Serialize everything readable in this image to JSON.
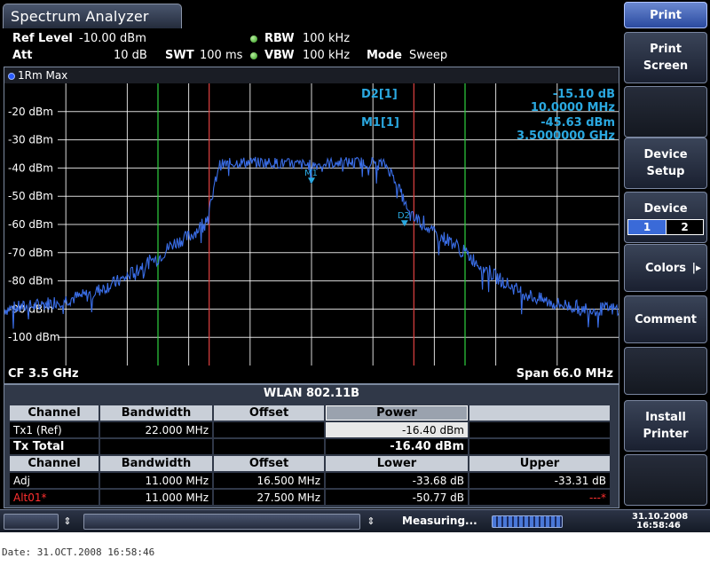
{
  "window": {
    "title": "Spectrum Analyzer"
  },
  "settings": {
    "ref_level_label": "Ref Level",
    "ref_level_value": "-10.00 dBm",
    "att_label": "Att",
    "att_value": "10 dB",
    "swt_label": "SWT",
    "swt_value": "100 ms",
    "rbw_label": "RBW",
    "rbw_value": "100 kHz",
    "vbw_label": "VBW",
    "vbw_value": "100 kHz",
    "mode_label": "Mode",
    "mode_value": "Sweep"
  },
  "trace": {
    "label": "1Rm Max"
  },
  "markers": {
    "d2_label": "D2[1]",
    "d2_level": "-15.10 dB",
    "d2_freq": "10.0000 MHz",
    "m1_label": "M1[1]",
    "m1_level": "-45.63 dBm",
    "m1_freq": "3.5000000 GHz",
    "m1_tag": "M1",
    "d2_tag": "D2"
  },
  "chart_data": {
    "type": "line",
    "ylabel_ticks": [
      "-20 dBm",
      "-30 dBm",
      "-40 dBm",
      "-50 dBm",
      "-60 dBm",
      "-70 dBm",
      "-80 dBm",
      "-90 dBm",
      "-100 dBm"
    ],
    "y_tick_values": [
      -20,
      -30,
      -40,
      -50,
      -60,
      -70,
      -80,
      -90,
      -100
    ],
    "ylim": [
      -110,
      -10
    ],
    "xlim_mhz": [
      -33,
      33
    ],
    "series": [
      {
        "x": [
          -33,
          -30,
          -27,
          -24,
          -22,
          -20,
          -18,
          -16.5,
          -15,
          -13,
          -12,
          -11,
          -10.5,
          -10,
          -8,
          -5,
          0,
          3,
          5,
          7,
          8,
          9,
          10,
          10.3,
          11,
          12,
          13,
          15,
          16.5,
          18,
          20,
          22,
          24,
          26,
          28,
          30,
          33
        ],
        "y": [
          -90,
          -89,
          -87,
          -85,
          -82,
          -79,
          -74,
          -72,
          -67,
          -64,
          -61,
          -56,
          -48,
          -39,
          -38,
          -38,
          -39,
          -38,
          -38,
          -38,
          -39,
          -44,
          -52,
          -56,
          -58,
          -59,
          -63,
          -66,
          -70,
          -74,
          -79,
          -83,
          -86,
          -88,
          -89,
          -90,
          -90
        ]
      }
    ],
    "channel_lines_mhz": {
      "green": [
        -16.5,
        16.5
      ],
      "red": [
        -11,
        11
      ]
    }
  },
  "footer": {
    "cf": "CF 3.5 GHz",
    "span": "Span 66.0 MHz"
  },
  "table": {
    "title": "WLAN 802.11B",
    "headers1": [
      "Channel",
      "Bandwidth",
      "Offset",
      "Power"
    ],
    "row_tx1": {
      "channel": "Tx1 (Ref)",
      "bandwidth": "22.000 MHz",
      "offset": "",
      "power": "-16.40 dBm"
    },
    "row_total": {
      "channel": "Tx Total",
      "power": "-16.40 dBm"
    },
    "headers2": [
      "Channel",
      "Bandwidth",
      "Offset",
      "Lower",
      "Upper"
    ],
    "row_adj": {
      "channel": "Adj",
      "bandwidth": "11.000 MHz",
      "offset": "16.500 MHz",
      "lower": "-33.68 dB",
      "upper": "-33.31 dB"
    },
    "row_alt": {
      "channel": "Alt01*",
      "bandwidth": "11.000 MHz",
      "offset": "27.500 MHz",
      "lower": "-50.77 dB",
      "upper": "---*"
    }
  },
  "status": {
    "measuring": "Measuring...",
    "date": "31.10.2008",
    "time": "16:58:46"
  },
  "softkeys": {
    "print": "Print",
    "print_screen_1": "Print",
    "print_screen_2": "Screen",
    "device_setup_1": "Device",
    "device_setup_2": "Setup",
    "device": "Device",
    "device_opt1": "1",
    "device_opt2": "2",
    "colors": "Colors",
    "comment": "Comment",
    "install_printer_1": "Install",
    "install_printer_2": "Printer"
  },
  "printout": {
    "date_line": "Date: 31.OCT.2008  16:58:46"
  }
}
